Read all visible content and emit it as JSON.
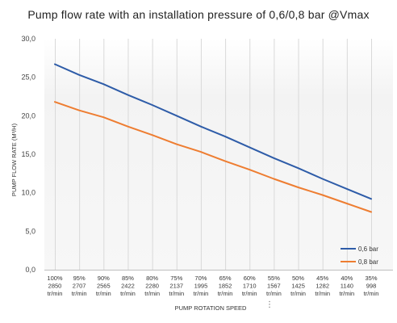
{
  "chart_data": {
    "type": "line",
    "title": "Pump flow rate with an installation pressure of  0,6/0,8 bar @Vmax",
    "xlabel": "PUMP ROTATION SPEED",
    "ylabel": "PUMP FLOW RATE (M³/H)",
    "ylim": [
      0,
      30
    ],
    "yticks": [
      "0,0",
      "5,0",
      "10,0",
      "15,0",
      "20,0",
      "25,0",
      "30,0"
    ],
    "categories": [
      [
        "100%",
        "2850",
        "tr/min"
      ],
      [
        "95%",
        "2707",
        "tr/min"
      ],
      [
        "90%",
        "2565",
        "tr/min"
      ],
      [
        "85%",
        "2422",
        "tr/min"
      ],
      [
        "80%",
        "2280",
        "tr/min"
      ],
      [
        "75%",
        "2137",
        "tr/min"
      ],
      [
        "70%",
        "1995",
        "tr/min"
      ],
      [
        "65%",
        "1852",
        "tr/min"
      ],
      [
        "60%",
        "1710",
        "tr/min"
      ],
      [
        "55%",
        "1567",
        "tr/min"
      ],
      [
        "50%",
        "1425",
        "tr/min"
      ],
      [
        "45%",
        "1282",
        "tr/min"
      ],
      [
        "40%",
        "1140",
        "tr/min"
      ],
      [
        "35%",
        "998",
        "tr/min"
      ]
    ],
    "series": [
      {
        "name": "0,6 bar",
        "color": "#2e5ca8",
        "values": [
          26.7,
          25.3,
          24.1,
          22.7,
          21.4,
          20.0,
          18.6,
          17.3,
          15.9,
          14.5,
          13.2,
          11.8,
          10.5,
          9.2
        ]
      },
      {
        "name": "0,8 bar",
        "color": "#ee7d31",
        "values": [
          21.8,
          20.7,
          19.8,
          18.6,
          17.5,
          16.3,
          15.3,
          14.1,
          13.0,
          11.8,
          10.7,
          9.7,
          8.6,
          7.5
        ]
      }
    ],
    "grid": "vertical",
    "legend": "bottom-right"
  },
  "menu_icon": "more-vertical-icon"
}
